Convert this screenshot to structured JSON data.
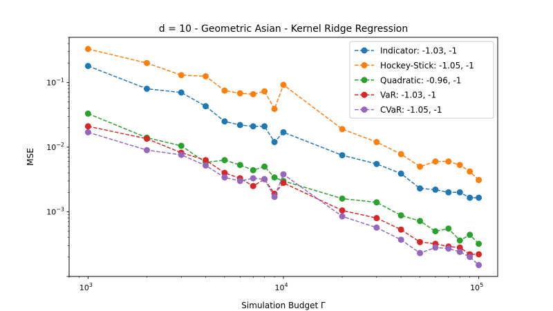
{
  "chart_data": {
    "type": "line",
    "title": "d = 10 - Geometric Asian - Kernel Ridge Regression",
    "xlabel": "Simulation Budget Γ",
    "ylabel": "MSE",
    "xscale": "log",
    "yscale": "log",
    "xlim": [
      800,
      125000
    ],
    "ylim": [
      0.0001,
      0.5
    ],
    "x_ticks": [
      {
        "value": 1000,
        "base": "10",
        "exp": "3"
      },
      {
        "value": 10000,
        "base": "10",
        "exp": "4"
      },
      {
        "value": 100000,
        "base": "10",
        "exp": "5"
      }
    ],
    "y_ticks": [
      {
        "value": 0.001,
        "base": "10",
        "exp": "−3"
      },
      {
        "value": 0.01,
        "base": "10",
        "exp": "−2"
      },
      {
        "value": 0.1,
        "base": "10",
        "exp": "−1"
      }
    ],
    "grid": false,
    "legend_position": "top-right",
    "x": [
      1000,
      2000,
      3000,
      4000,
      5000,
      6000,
      7000,
      8000,
      9000,
      10000,
      20000,
      30000,
      40000,
      50000,
      60000,
      70000,
      80000,
      90000,
      100000
    ],
    "series": [
      {
        "name": "Indicator: -1.03, -1",
        "color": "#1f77b4",
        "values": [
          0.18,
          0.08,
          0.07,
          0.043,
          0.025,
          0.022,
          0.021,
          0.021,
          0.012,
          0.017,
          0.0075,
          0.0055,
          0.0039,
          0.0023,
          0.0022,
          0.002,
          0.002,
          0.00165,
          0.00165
        ]
      },
      {
        "name": "Hockey-Stick: -1.05, -1",
        "color": "#ff7f0e",
        "values": [
          0.33,
          0.2,
          0.13,
          0.125,
          0.075,
          0.068,
          0.066,
          0.073,
          0.039,
          0.092,
          0.019,
          0.012,
          0.0078,
          0.005,
          0.006,
          0.006,
          0.0053,
          0.0042,
          0.0031
        ]
      },
      {
        "name": "Quadratic: -0.96, -1",
        "color": "#2ca02c",
        "values": [
          0.033,
          0.014,
          0.0105,
          0.0058,
          0.0063,
          0.0053,
          0.0044,
          0.005,
          0.0034,
          0.003,
          0.0016,
          0.0014,
          0.00088,
          0.00072,
          0.0005,
          0.00055,
          0.00036,
          0.00044,
          0.00032
        ]
      },
      {
        "name": "VaR: -1.03, -1",
        "color": "#d62728",
        "values": [
          0.021,
          0.0135,
          0.0082,
          0.0063,
          0.004,
          0.0033,
          0.0025,
          0.0032,
          0.0019,
          0.0028,
          0.00105,
          0.0008,
          0.00053,
          0.00034,
          0.00032,
          0.00029,
          0.00028,
          0.00022,
          0.00022
        ]
      },
      {
        "name": "CVaR: -1.05, -1",
        "color": "#9467bd",
        "values": [
          0.017,
          0.009,
          0.0076,
          0.0052,
          0.0034,
          0.003,
          0.0033,
          0.0032,
          0.0017,
          0.0038,
          0.00085,
          0.00057,
          0.00037,
          0.00023,
          0.00028,
          0.00027,
          0.00024,
          0.0002,
          0.00015
        ]
      }
    ]
  }
}
